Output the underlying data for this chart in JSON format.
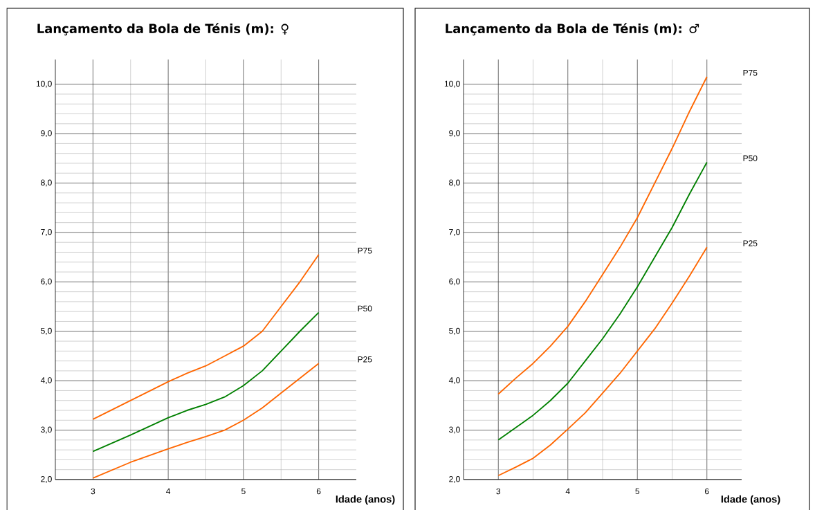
{
  "chart_data": [
    {
      "type": "line",
      "title": "Lançamento da Bola de Ténis (m): ♀",
      "xlabel": "Idade (anos)",
      "x": [
        3,
        3.5,
        4,
        4.25,
        4.5,
        4.75,
        5,
        5.25,
        5.5,
        5.75,
        6
      ],
      "series": [
        {
          "name": "P75",
          "color": "#ff6600",
          "values": [
            3.22,
            3.6,
            3.98,
            4.15,
            4.3,
            4.5,
            4.7,
            5.0,
            5.5,
            6.0,
            6.55
          ]
        },
        {
          "name": "P50",
          "color": "#008000",
          "values": [
            2.57,
            2.9,
            3.25,
            3.4,
            3.52,
            3.67,
            3.9,
            4.2,
            4.6,
            5.0,
            5.38
          ]
        },
        {
          "name": "P25",
          "color": "#ff6600",
          "values": [
            2.03,
            2.35,
            2.62,
            2.75,
            2.87,
            3.0,
            3.2,
            3.45,
            3.75,
            4.05,
            4.35
          ]
        }
      ],
      "xlim": [
        2.5,
        6.5
      ],
      "ylim": [
        2,
        10.5
      ],
      "xticks": [
        3,
        4,
        5,
        6
      ],
      "yticks": [
        {
          "value": 2,
          "label": "2,0"
        },
        {
          "value": 3,
          "label": "3,0"
        },
        {
          "value": 4,
          "label": "4,0"
        },
        {
          "value": 5,
          "label": "5,0"
        },
        {
          "value": 6,
          "label": "6,0"
        },
        {
          "value": 7,
          "label": "7,0"
        },
        {
          "value": 8,
          "label": "8,0"
        },
        {
          "value": 9,
          "label": "9,0"
        },
        {
          "value": 10,
          "label": "10,0"
        }
      ],
      "grid": true,
      "legend": false
    },
    {
      "type": "line",
      "title": "Lançamento da Bola de Ténis (m): ♂",
      "xlabel": "Idade (anos)",
      "x": [
        3,
        3.25,
        3.5,
        3.75,
        4,
        4.25,
        4.5,
        4.75,
        5,
        5.25,
        5.5,
        5.75,
        6
      ],
      "series": [
        {
          "name": "P75",
          "color": "#ff6600",
          "values": [
            3.73,
            4.05,
            4.35,
            4.7,
            5.1,
            5.6,
            6.15,
            6.7,
            7.3,
            8.0,
            8.7,
            9.45,
            10.15
          ]
        },
        {
          "name": "P50",
          "color": "#008000",
          "values": [
            2.8,
            3.05,
            3.3,
            3.6,
            3.95,
            4.4,
            4.85,
            5.35,
            5.9,
            6.5,
            7.1,
            7.78,
            8.42
          ]
        },
        {
          "name": "P25",
          "color": "#ff6600",
          "values": [
            2.08,
            2.25,
            2.43,
            2.7,
            3.02,
            3.35,
            3.75,
            4.15,
            4.6,
            5.05,
            5.57,
            6.12,
            6.7
          ]
        }
      ],
      "xlim": [
        2.5,
        6.5
      ],
      "ylim": [
        2,
        10.5
      ],
      "xticks": [
        3,
        4,
        5,
        6
      ],
      "yticks": [
        {
          "value": 2,
          "label": "2,0"
        },
        {
          "value": 3,
          "label": "3,0"
        },
        {
          "value": 4,
          "label": "4,0"
        },
        {
          "value": 5,
          "label": "5,0"
        },
        {
          "value": 6,
          "label": "6,0"
        },
        {
          "value": 7,
          "label": "7,0"
        },
        {
          "value": 8,
          "label": "8,0"
        },
        {
          "value": 9,
          "label": "9,0"
        },
        {
          "value": 10,
          "label": "10,0"
        }
      ],
      "grid": true,
      "legend": false
    }
  ]
}
